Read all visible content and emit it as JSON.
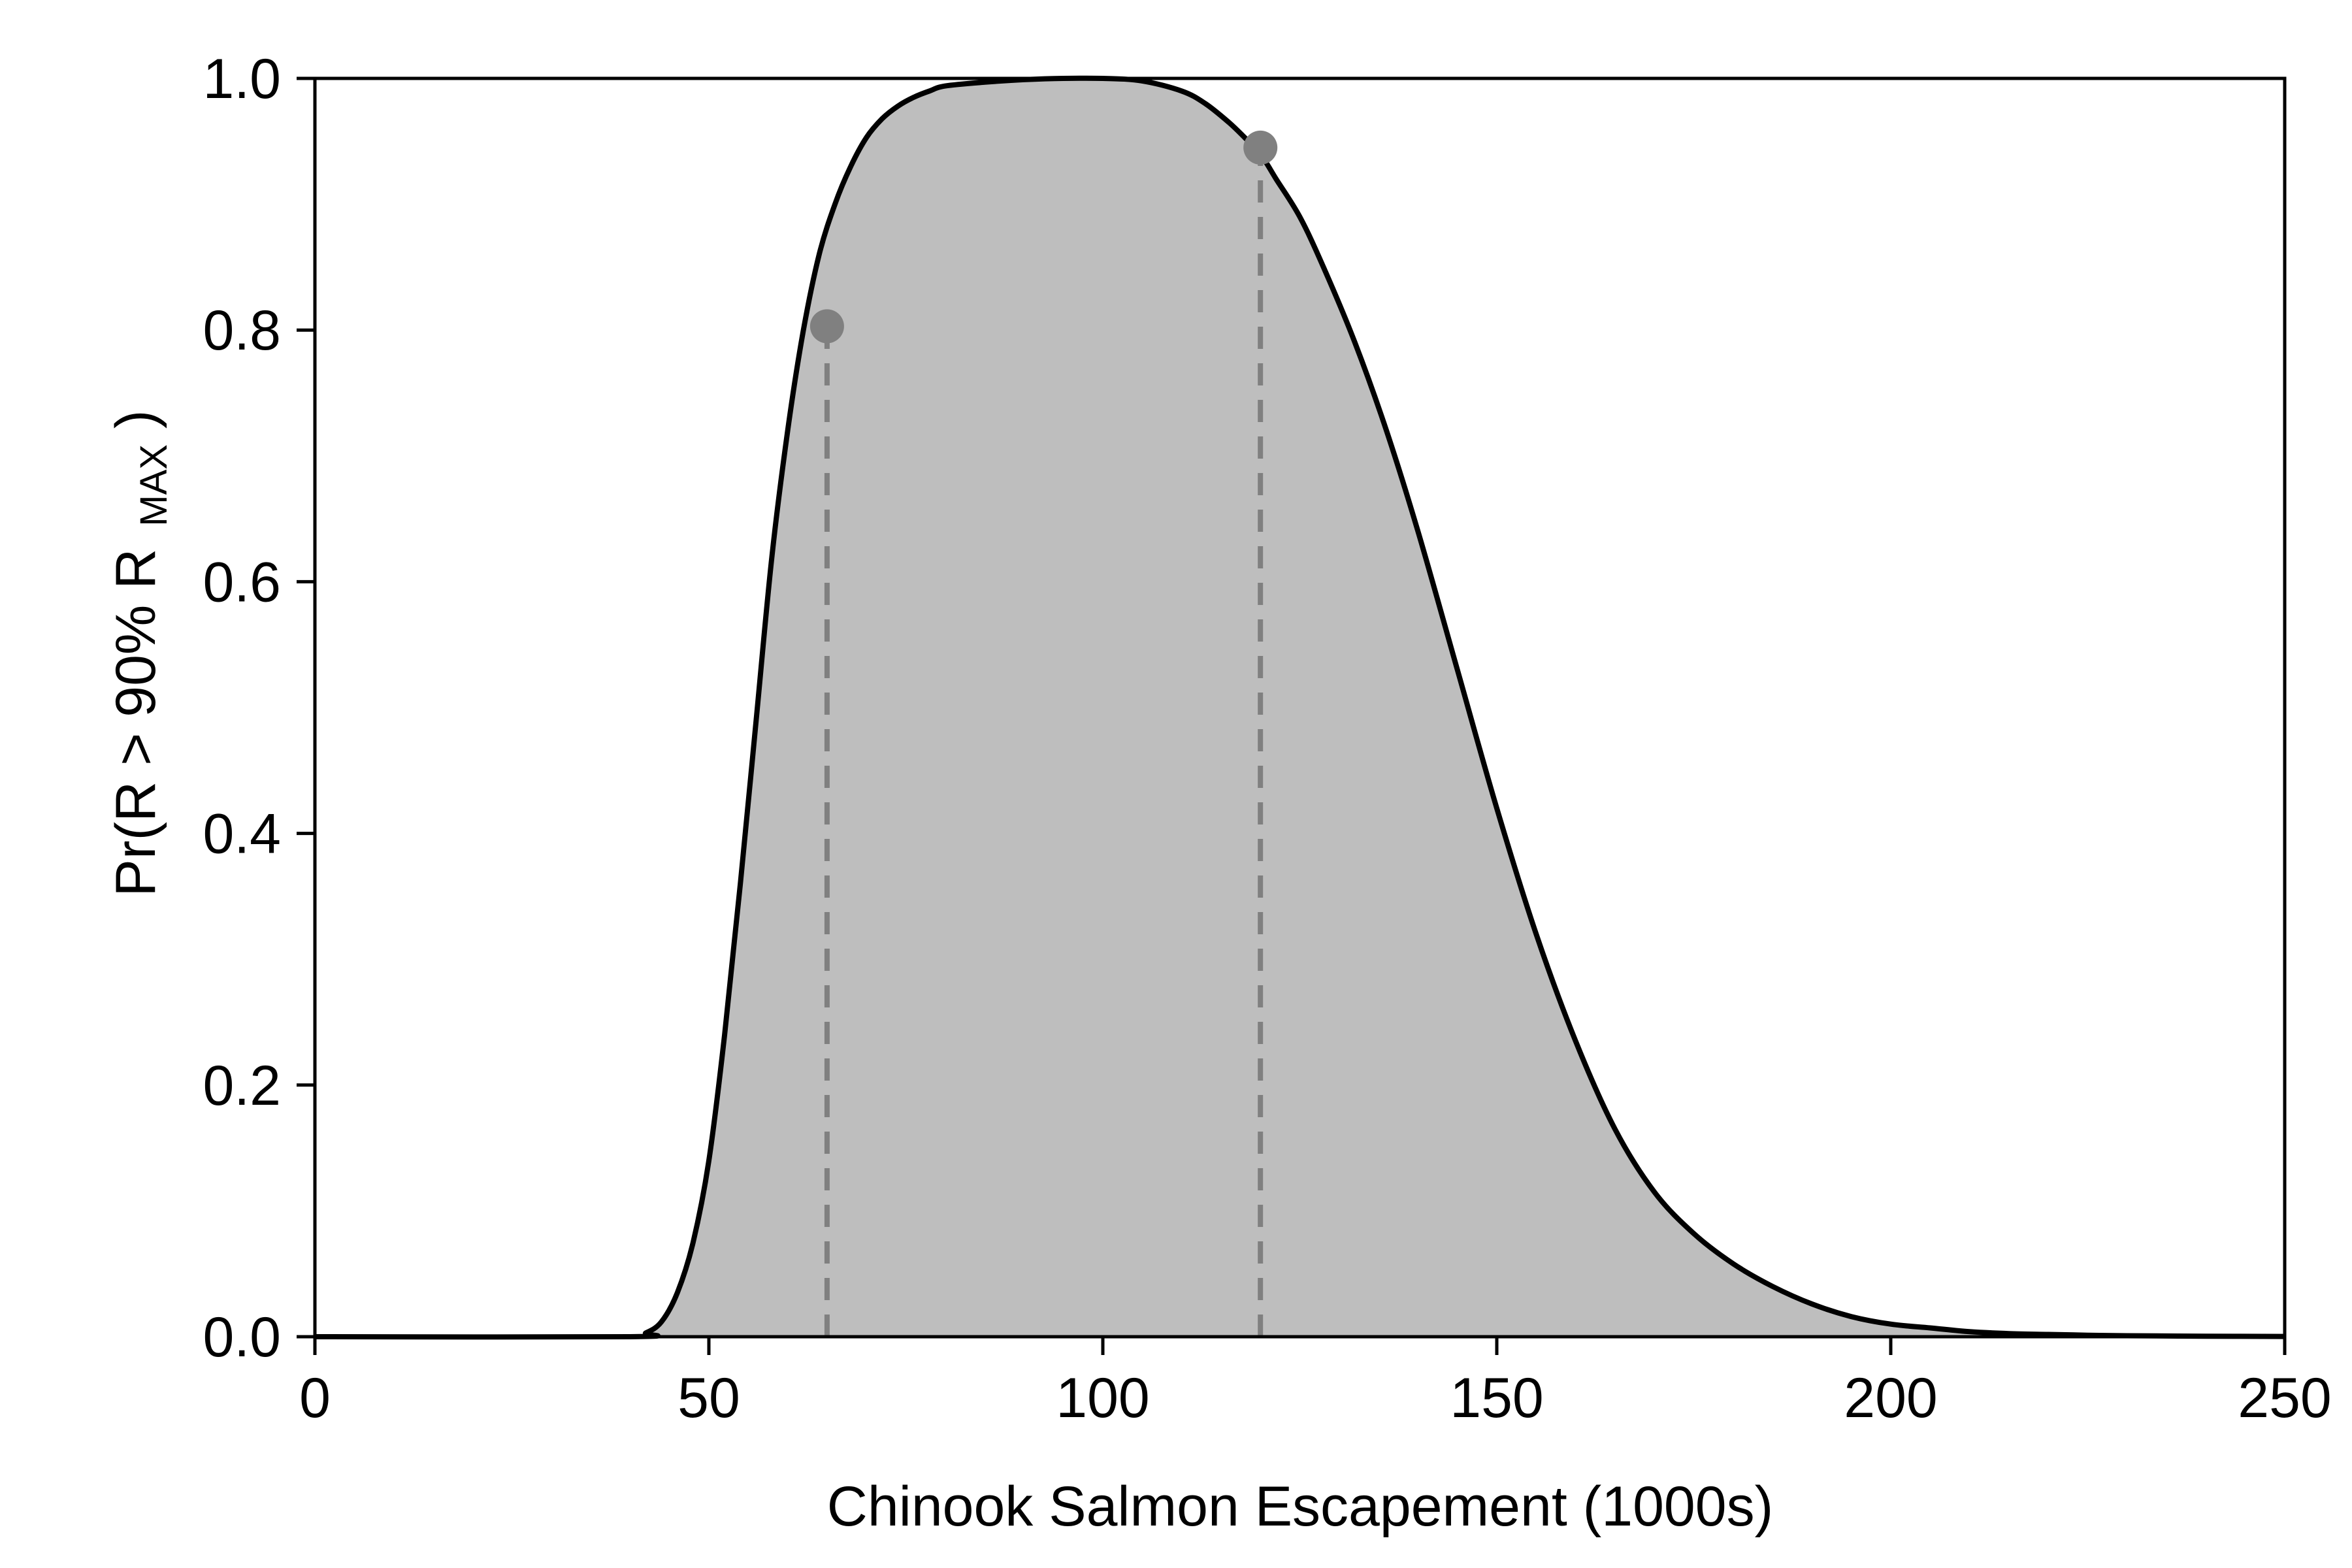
{
  "chart_data": {
    "type": "area",
    "title": "",
    "xlabel": "Chinook Salmon Escapement (1000s)",
    "ylabel": {
      "prefix": "Pr(R > 90% R",
      "subscript": "MAX",
      "suffix": ")"
    },
    "xlim": [
      0,
      250
    ],
    "ylim": [
      0,
      1.0
    ],
    "xticks": [
      0,
      50,
      100,
      150,
      200,
      250
    ],
    "yticks": [
      0.0,
      0.2,
      0.4,
      0.6,
      0.8,
      1.0
    ],
    "xtick_labels": [
      "0",
      "50",
      "100",
      "150",
      "200",
      "250"
    ],
    "ytick_labels": [
      "0.0",
      "0.2",
      "0.4",
      "0.6",
      "0.8",
      "1.0"
    ],
    "grid": false,
    "series": [
      {
        "x": [
          0,
          40,
          42,
          44,
          46,
          48,
          50,
          52,
          54,
          56,
          58,
          60,
          62,
          64,
          66,
          68,
          70,
          72,
          74,
          76,
          78,
          80,
          85,
          90,
          95,
          100,
          105,
          110,
          113,
          116,
          118,
          120,
          122,
          125,
          128,
          132,
          136,
          140,
          145,
          150,
          155,
          160,
          165,
          170,
          175,
          180,
          185,
          190,
          195,
          200,
          205,
          210,
          215,
          220,
          225,
          230,
          240,
          250
        ],
        "y": [
          0.0,
          0.0,
          0.003,
          0.012,
          0.035,
          0.075,
          0.14,
          0.24,
          0.36,
          0.49,
          0.62,
          0.72,
          0.8,
          0.86,
          0.9,
          0.93,
          0.953,
          0.968,
          0.978,
          0.985,
          0.99,
          0.994,
          0.997,
          0.999,
          1.0,
          1.0,
          0.998,
          0.99,
          0.98,
          0.965,
          0.953,
          0.94,
          0.92,
          0.89,
          0.85,
          0.79,
          0.72,
          0.64,
          0.53,
          0.42,
          0.32,
          0.235,
          0.165,
          0.115,
          0.082,
          0.058,
          0.04,
          0.026,
          0.016,
          0.01,
          0.007,
          0.004,
          0.0025,
          0.0018,
          0.0012,
          0.0008,
          0.0004,
          0.0002
        ]
      }
    ],
    "markers": [
      {
        "x": 65,
        "y": 0.803
      },
      {
        "x": 120,
        "y": 0.945
      }
    ],
    "fill_color": "#bebebe",
    "line_color": "#000000",
    "marker_color": "#808080",
    "dash_color": "#808080"
  }
}
